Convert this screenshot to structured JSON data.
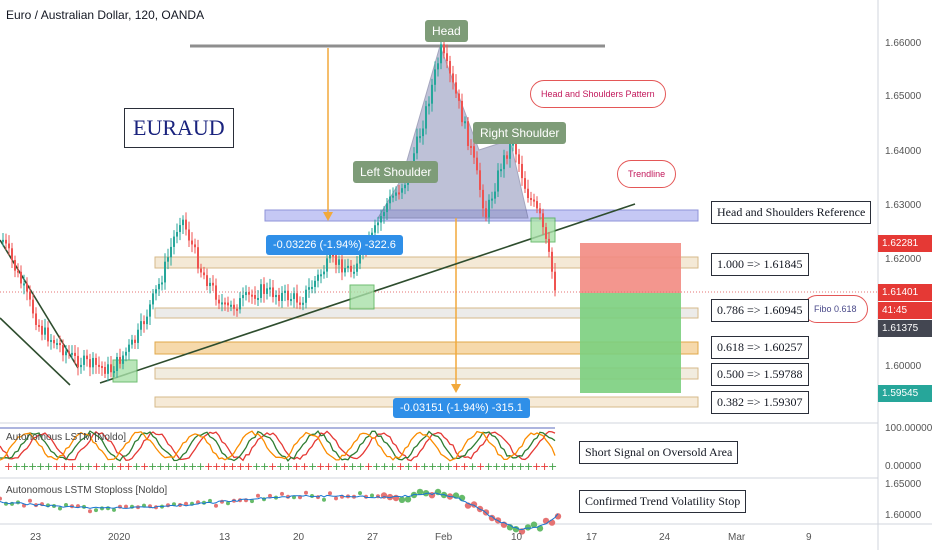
{
  "header": {
    "title": "Euro / Australian Dollar, 120, OANDA"
  },
  "symbol_box": "EURAUD",
  "price_axis": {
    "ticks": [
      "1.66000",
      "1.65000",
      "1.64000",
      "1.63000",
      "1.62000",
      "1.60000"
    ],
    "tags": [
      {
        "value": "1.62281",
        "color": "#e53935"
      },
      {
        "value": "1.61401",
        "color": "#e53935"
      },
      {
        "value": "41:45",
        "color": "#e53935"
      },
      {
        "value": "1.61375",
        "color": "#434651"
      },
      {
        "value": "1.59545",
        "color": "#26a69a"
      }
    ]
  },
  "ind1_axis": [
    "100.00000",
    "0.00000"
  ],
  "ind2_axis": [
    "1.65000",
    "1.60000"
  ],
  "time_axis": [
    "23",
    "2020",
    "13",
    "20",
    "27",
    "Feb",
    "10",
    "17",
    "24",
    "Mar",
    "9"
  ],
  "annotations": {
    "head": "Head",
    "left_shoulder": "Left Shoulder",
    "right_shoulder": "Right Shoulder",
    "hs_pattern": "Head and Shoulders Pattern",
    "trendline": "Trendline",
    "fibo": "Fibo 0.618",
    "measure_left": "-0.03226 (-1.94%) -322.6",
    "measure_right": "-0.03151 (-1.94%) -315.1",
    "hs_reference": "Head and Shoulders Reference",
    "fib_1000": "1.000 => 1.61845",
    "fib_0786": "0.786 => 1.60945",
    "fib_0618": "0.618 => 1.60257",
    "fib_0500": "0.500 => 1.59788",
    "fib_0382": "0.382 => 1.59307",
    "short_signal": "Short Signal on Oversold Area",
    "volatility_stop": "Confirmed Trend Volatility Stop"
  },
  "indicators": {
    "ind1_title": "Autonomous LSTM [Noldo]",
    "ind2_title": "Autonomous LSTM Stoploss [Noldo]"
  },
  "colors": {
    "up": "#26a69a",
    "down": "#ef5350",
    "fib_band": "#f4d7a4",
    "hs_band": "#b3b7f0",
    "hs_fill": "#8a8fb8",
    "sell_zone": "#f28b82",
    "buy_zone": "#7bcf7e"
  }
}
